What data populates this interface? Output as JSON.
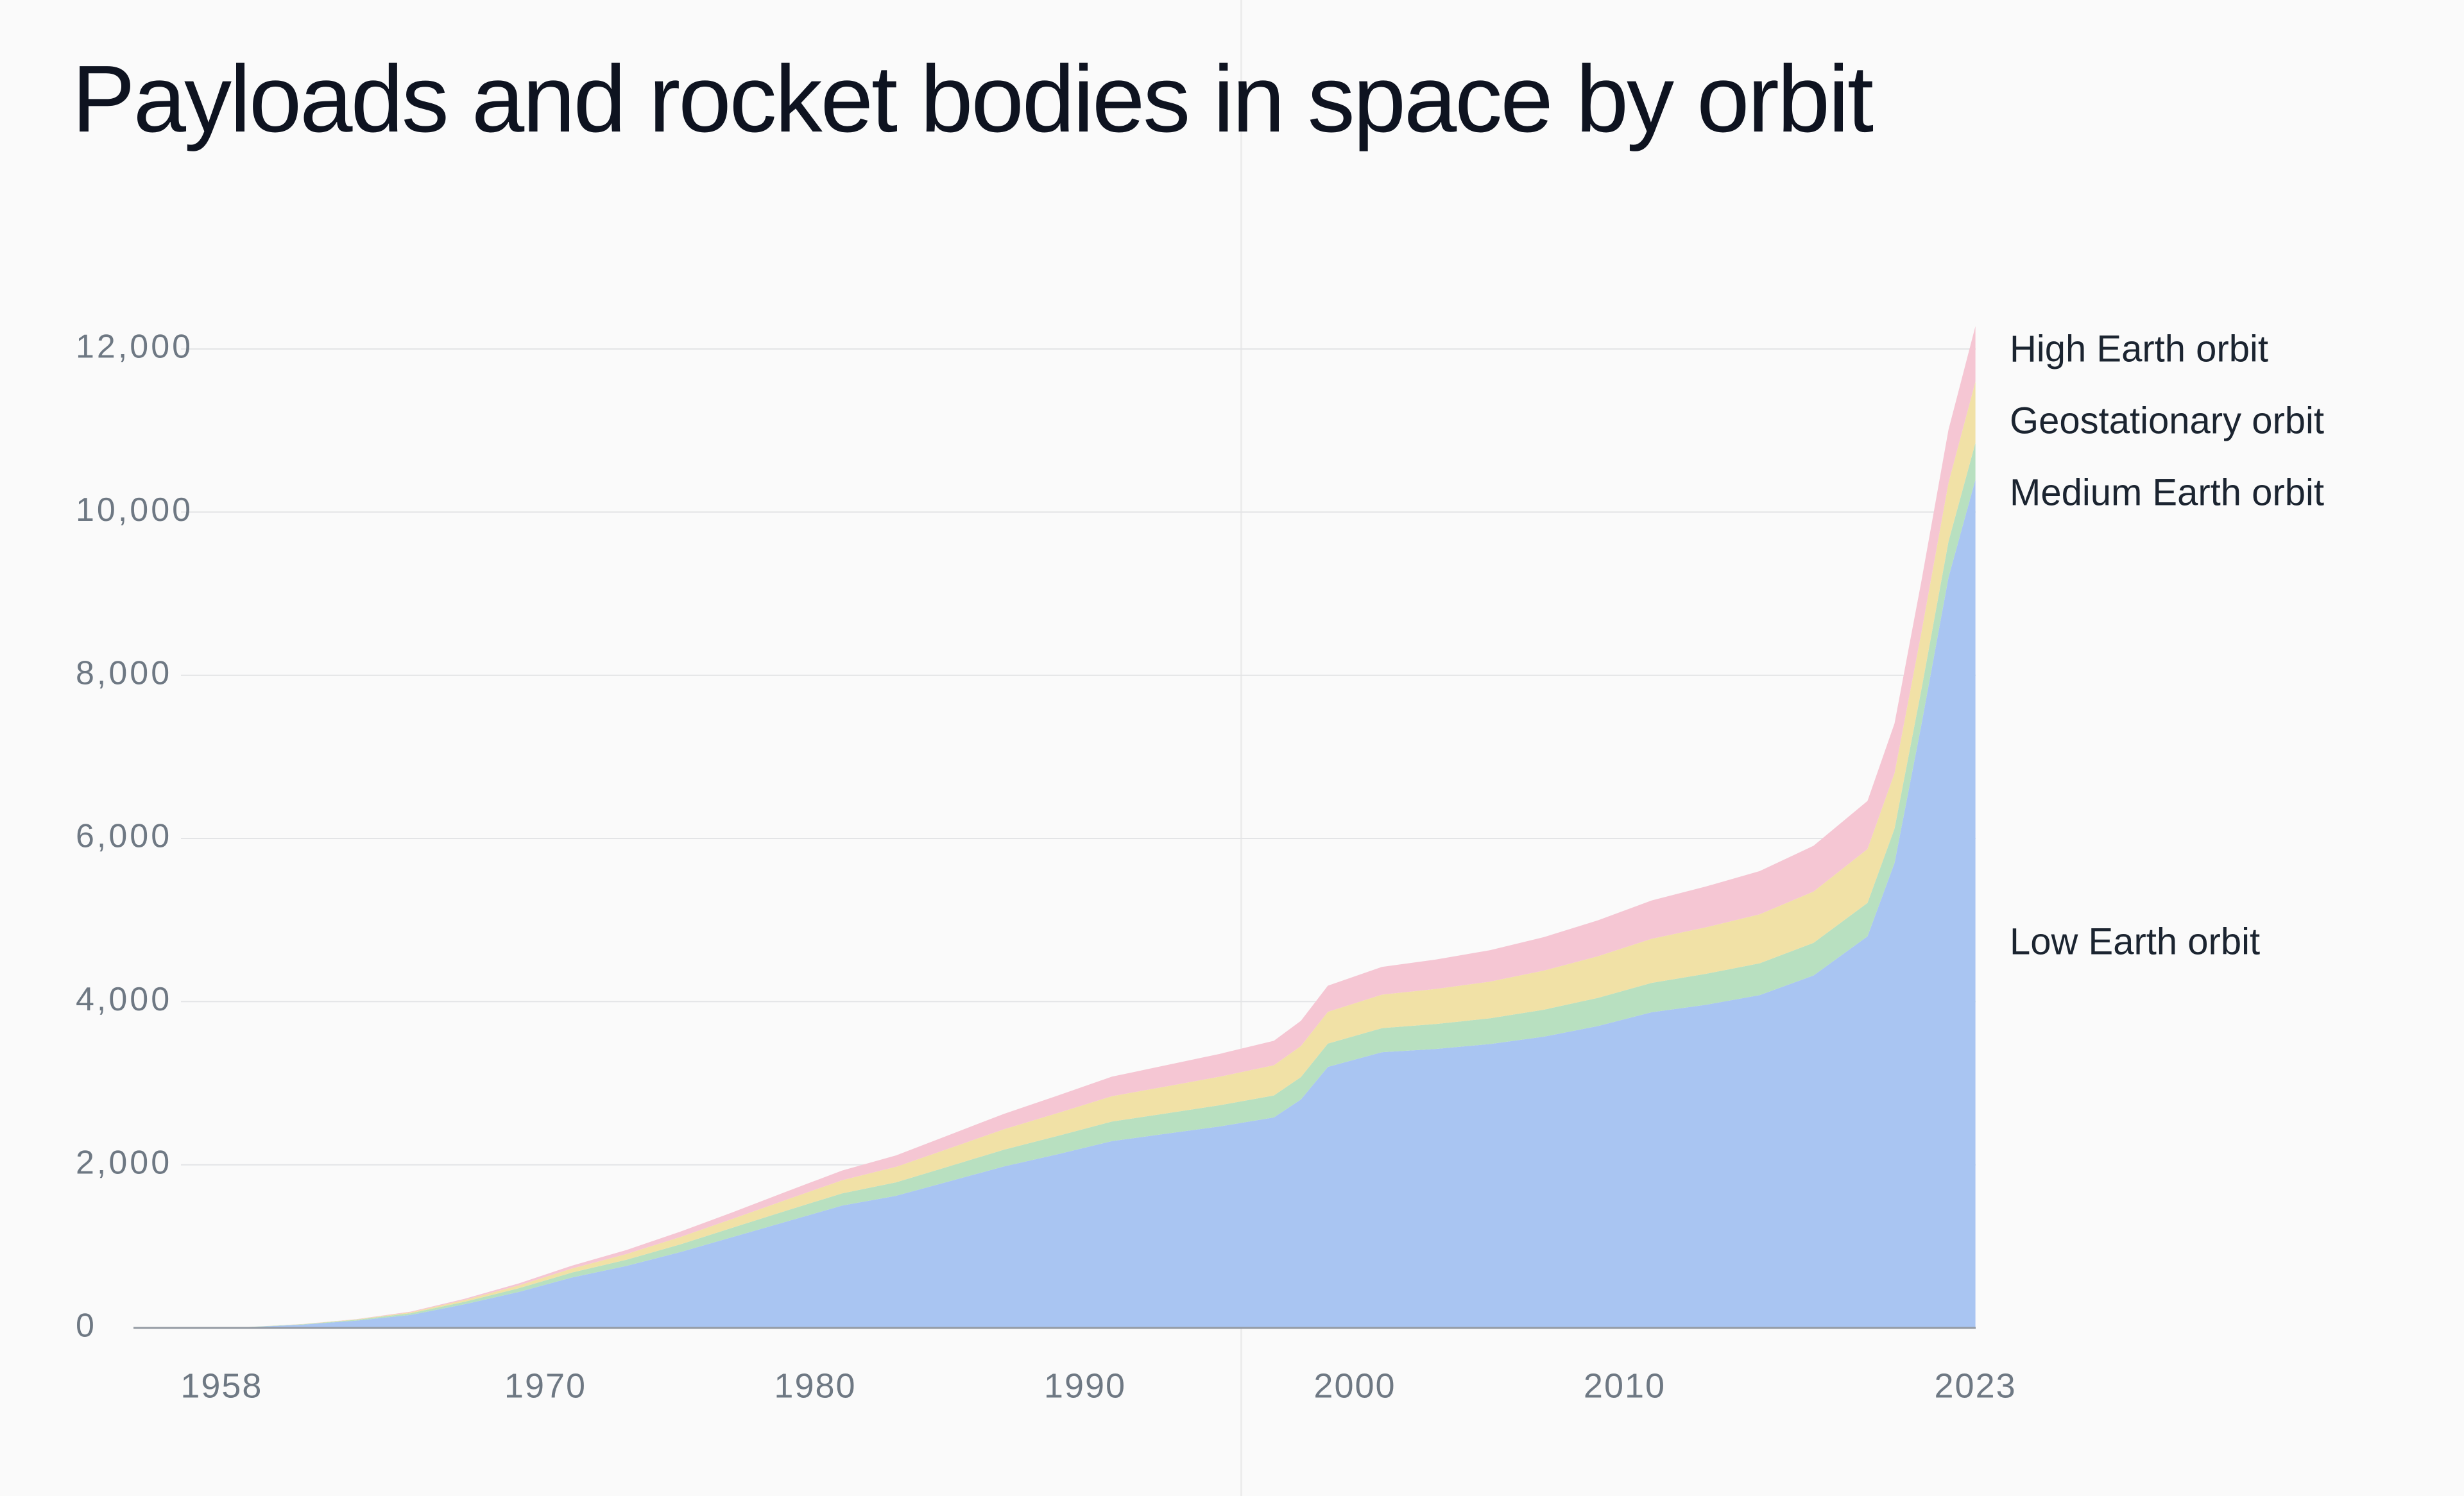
{
  "page": {
    "background": "#fafafa"
  },
  "chart_data": {
    "type": "area",
    "stacked": true,
    "title": "Payloads and rocket bodies in space by orbit",
    "grid": true,
    "legend_position": "right",
    "ylim": [
      0,
      12000
    ],
    "xlim": [
      1957,
      2023
    ],
    "x_years": [
      1957,
      1959,
      1961,
      1963,
      1965,
      1967,
      1969,
      1971,
      1973,
      1975,
      1977,
      1979,
      1981,
      1983,
      1985,
      1987,
      1989,
      1991,
      1993,
      1995,
      1997,
      1998,
      1999,
      2001,
      2003,
      2005,
      2007,
      2009,
      2011,
      2013,
      2015,
      2017,
      2019,
      2020,
      2021,
      2022,
      2023
    ],
    "series": [
      {
        "name": "Low Earth orbit",
        "color": "#a9c5f2",
        "values": [
          0,
          10,
          40,
          90,
          160,
          290,
          440,
          620,
          760,
          930,
          1120,
          1310,
          1500,
          1620,
          1800,
          1980,
          2130,
          2290,
          2380,
          2470,
          2580,
          2800,
          3200,
          3380,
          3420,
          3480,
          3570,
          3700,
          3870,
          3960,
          4080,
          4320,
          4800,
          5700,
          7400,
          9200,
          10400
        ]
      },
      {
        "name": "Medium Earth orbit",
        "color": "#b8e0c0",
        "values": [
          0,
          2,
          5,
          10,
          20,
          30,
          45,
          60,
          75,
          95,
          115,
          135,
          150,
          165,
          185,
          205,
          225,
          240,
          250,
          260,
          270,
          275,
          285,
          295,
          305,
          315,
          330,
          345,
          360,
          380,
          390,
          400,
          410,
          420,
          430,
          440,
          450
        ]
      },
      {
        "name": "Geostationary orbit",
        "color": "#f1e1a6",
        "values": [
          0,
          0,
          2,
          5,
          12,
          22,
          35,
          50,
          70,
          90,
          110,
          135,
          160,
          190,
          220,
          250,
          280,
          310,
          330,
          350,
          370,
          380,
          390,
          410,
          430,
          450,
          480,
          510,
          540,
          570,
          600,
          630,
          660,
          680,
          700,
          720,
          750
        ]
      },
      {
        "name": "High Earth orbit",
        "color": "#f5c6d3",
        "values": [
          0,
          0,
          1,
          3,
          8,
          15,
          25,
          35,
          50,
          65,
          80,
          100,
          120,
          140,
          165,
          190,
          215,
          240,
          260,
          280,
          300,
          310,
          320,
          340,
          360,
          385,
          410,
          440,
          470,
          500,
          530,
          560,
          590,
          610,
          630,
          650,
          680
        ]
      }
    ],
    "legend": [
      {
        "label": "High Earth orbit"
      },
      {
        "label": "Geostationary orbit"
      },
      {
        "label": "Medium Earth orbit"
      },
      {
        "label": "Low Earth orbit"
      }
    ],
    "yticks": [
      {
        "value": 0,
        "label": "0"
      },
      {
        "value": 2000,
        "label": "2,000"
      },
      {
        "value": 4000,
        "label": "4,000"
      },
      {
        "value": 6000,
        "label": "6,000"
      },
      {
        "value": 8000,
        "label": "8,000"
      },
      {
        "value": 10000,
        "label": "10,000"
      },
      {
        "value": 12000,
        "label": "12,000"
      }
    ],
    "xticks": [
      {
        "year": 1958,
        "label": "1958"
      },
      {
        "year": 1970,
        "label": "1970"
      },
      {
        "year": 1980,
        "label": "1980"
      },
      {
        "year": 1990,
        "label": "1990"
      },
      {
        "year": 2000,
        "label": "2000"
      },
      {
        "year": 2010,
        "label": "2010"
      },
      {
        "year": 2023,
        "label": "2023"
      }
    ]
  }
}
